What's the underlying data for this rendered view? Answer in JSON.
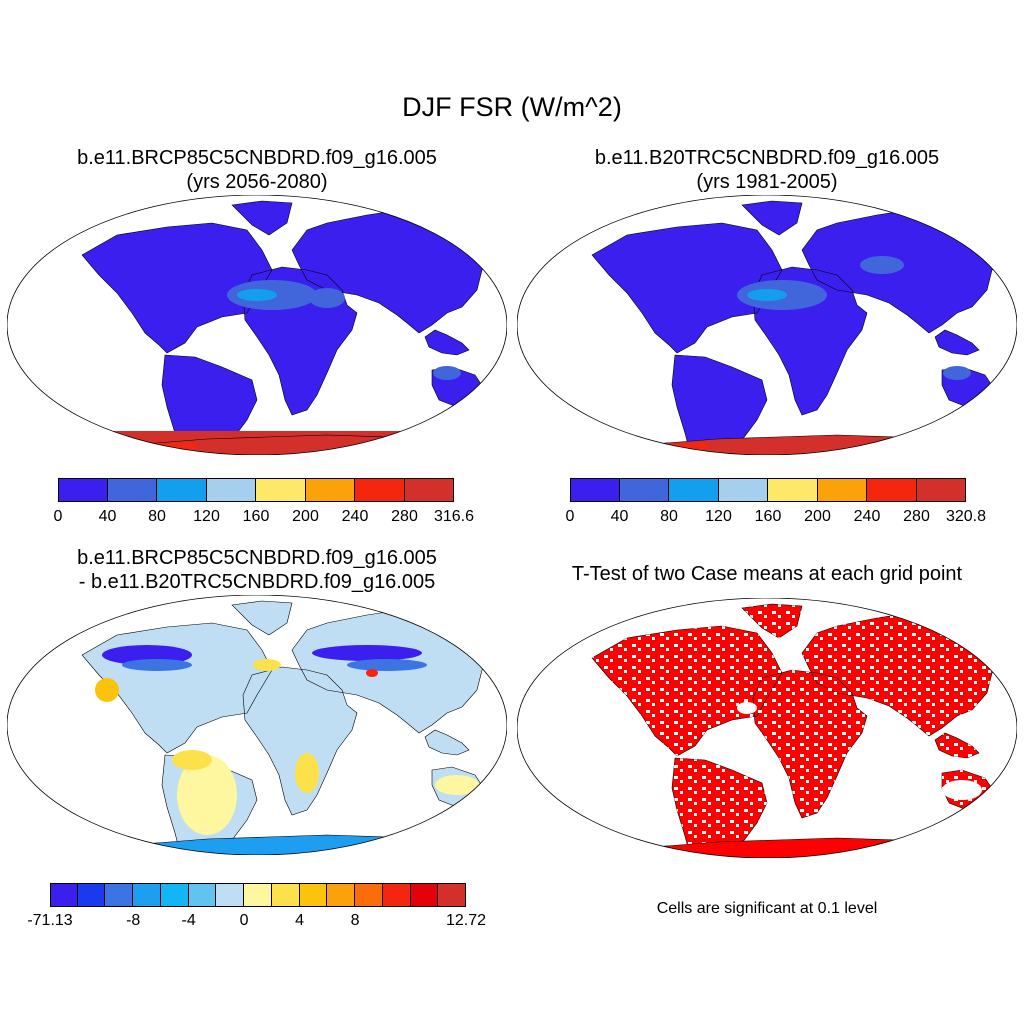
{
  "figure": {
    "title": "DJF FSR (W/m^2)"
  },
  "panels": [
    {
      "id": "future",
      "title_line1": "b.e11.BRCP85C5CNBDRD.f09_g16.005",
      "title_line2": "(yrs 2056-2080)",
      "colorbar": {
        "colors": [
          "#3b1fef",
          "#4166dc",
          "#12a0ee",
          "#a6cfee",
          "#fde86a",
          "#fba20a",
          "#f5260e",
          "#d3302b"
        ],
        "labels": [
          "0",
          "40",
          "80",
          "120",
          "160",
          "200",
          "240",
          "280",
          "316.6"
        ]
      }
    },
    {
      "id": "historical",
      "title_line1": "b.e11.B20TRC5CNBDRD.f09_g16.005",
      "title_line2": "(yrs 1981-2005)",
      "colorbar": {
        "colors": [
          "#3b1fef",
          "#4166dc",
          "#12a0ee",
          "#a6cfee",
          "#fde86a",
          "#fba20a",
          "#f5260e",
          "#d3302b"
        ],
        "labels": [
          "0",
          "40",
          "80",
          "120",
          "160",
          "200",
          "240",
          "280",
          "320.8"
        ]
      }
    },
    {
      "id": "difference",
      "title_line1": "b.e11.BRCP85C5CNBDRD.f09_g16.005",
      "title_line2": "- b.e11.B20TRC5CNBDRD.f09_g16.005",
      "colorbar": {
        "colors": [
          "#3b1fef",
          "#1a3af0",
          "#3c74e4",
          "#1d9ef0",
          "#12b6f5",
          "#61c3ef",
          "#bfdef3",
          "#fef7a0",
          "#fde14a",
          "#fbc30c",
          "#fba20a",
          "#fa6c0c",
          "#f5260e",
          "#e30208",
          "#d3302b"
        ],
        "labels": [
          "-71.13",
          "-8",
          "-4",
          "0",
          "4",
          "8",
          "12.72"
        ]
      }
    },
    {
      "id": "ttest",
      "title_line1": "T-Test of two Case means at each grid point",
      "note": "Cells are significant at 0.1 level",
      "color": "#ff0000"
    }
  ]
}
